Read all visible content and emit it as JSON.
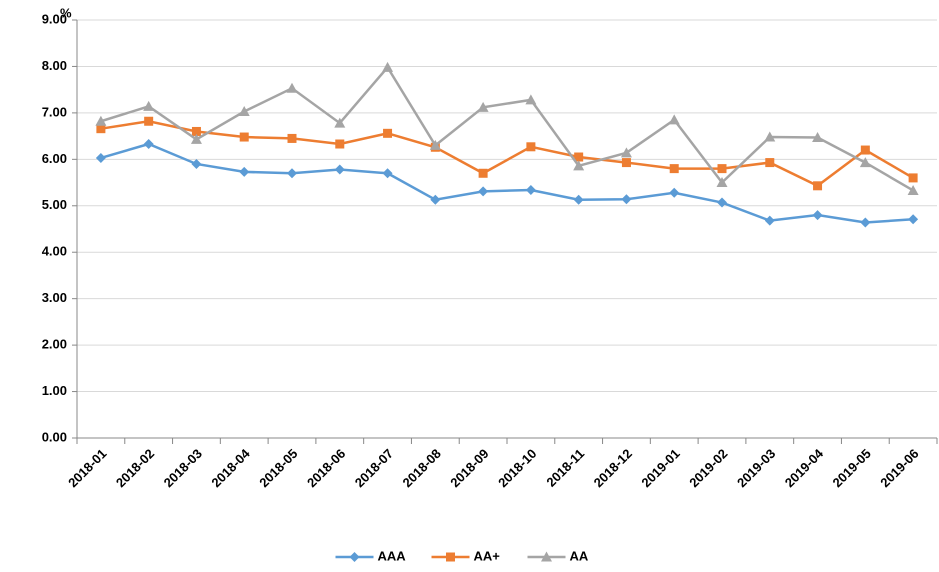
{
  "chart_data": {
    "type": "line",
    "y_unit": "%",
    "categories": [
      "2018-01",
      "2018-02",
      "2018-03",
      "2018-04",
      "2018-05",
      "2018-06",
      "2018-07",
      "2018-08",
      "2018-09",
      "2018-10",
      "2018-11",
      "2018-12",
      "2019-01",
      "2019-02",
      "2019-03",
      "2019-04",
      "2019-05",
      "2019-06"
    ],
    "series": [
      {
        "name": "AAA",
        "color": "#5b9bd5",
        "marker": "diamond",
        "values": [
          6.03,
          6.33,
          5.9,
          5.73,
          5.7,
          5.78,
          5.7,
          5.13,
          5.31,
          5.34,
          5.13,
          5.14,
          5.28,
          5.07,
          4.68,
          4.8,
          4.64,
          4.71
        ]
      },
      {
        "name": "AA+",
        "color": "#ed7d31",
        "marker": "square",
        "values": [
          6.66,
          6.82,
          6.6,
          6.48,
          6.45,
          6.33,
          6.56,
          6.26,
          5.7,
          6.27,
          6.05,
          5.93,
          5.8,
          5.8,
          5.93,
          5.43,
          6.2,
          5.6
        ]
      },
      {
        "name": "AA",
        "color": "#a5a5a5",
        "marker": "triangle",
        "values": [
          6.82,
          7.14,
          6.43,
          7.03,
          7.53,
          6.78,
          7.98,
          6.3,
          7.12,
          7.28,
          5.86,
          6.14,
          6.85,
          5.5,
          6.48,
          6.47,
          5.93,
          5.33
        ]
      }
    ],
    "ylim": [
      0,
      9
    ],
    "yticks": [
      {
        "value": 0,
        "label": "0.00"
      },
      {
        "value": 1,
        "label": "1.00"
      },
      {
        "value": 2,
        "label": "2.00"
      },
      {
        "value": 3,
        "label": "3.00"
      },
      {
        "value": 4,
        "label": "4.00"
      },
      {
        "value": 5,
        "label": "5.00"
      },
      {
        "value": 6,
        "label": "6.00"
      },
      {
        "value": 7,
        "label": "7.00"
      },
      {
        "value": 8,
        "label": "8.00"
      },
      {
        "value": 9,
        "label": "9.00"
      }
    ],
    "grid": true,
    "legend": "bottom"
  }
}
